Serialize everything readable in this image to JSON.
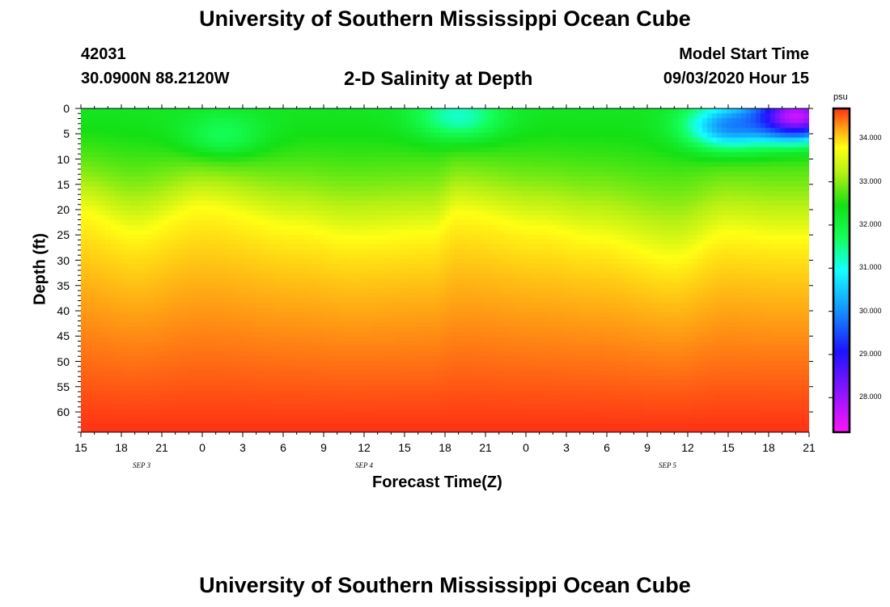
{
  "header": {
    "title": "University of Southern Mississippi Ocean Cube",
    "station_id": "42031",
    "location": "30.0900N 88.2120W",
    "plot_title": "2-D Salinity at Depth",
    "model_label": "Model Start Time",
    "model_time": "09/03/2020 Hour 15"
  },
  "footer": {
    "title": "University of Southern Mississippi Ocean Cube"
  },
  "chart_data": {
    "type": "heatmap",
    "title": "2-D Salinity at Depth",
    "xlabel": "Forecast Time(Z)",
    "ylabel": "Depth (ft)",
    "x_ticks": [
      "15",
      "18",
      "21",
      "0",
      "3",
      "6",
      "9",
      "12",
      "15",
      "18",
      "21",
      "0",
      "3",
      "6",
      "9",
      "12",
      "15",
      "18",
      "21"
    ],
    "x_hours": [
      0,
      54
    ],
    "date_labels": [
      {
        "label": "SEP 3",
        "hour": 4.5
      },
      {
        "label": "SEP 4",
        "hour": 21
      },
      {
        "label": "SEP 5",
        "hour": 43.5
      }
    ],
    "y_ticks": [
      0,
      5,
      10,
      15,
      20,
      25,
      30,
      35,
      40,
      45,
      50,
      55,
      60
    ],
    "ylim": [
      0,
      64
    ],
    "colorbar": {
      "unit": "psu",
      "range": [
        27.2,
        34.7
      ],
      "ticks": [
        "34.000",
        "33.000",
        "32.000",
        "31.000",
        "30.000",
        "29.000",
        "28.000"
      ],
      "tick_values": [
        34,
        33,
        32,
        31,
        30,
        29,
        28
      ]
    },
    "halocline_depth_ft": [
      {
        "hour": 0,
        "depth": 20
      },
      {
        "hour": 4,
        "depth": 24
      },
      {
        "hour": 9,
        "depth": 19
      },
      {
        "hour": 16,
        "depth": 23
      },
      {
        "hour": 20,
        "depth": 25
      },
      {
        "hour": 26,
        "depth": 24
      },
      {
        "hour": 28,
        "depth": 20
      },
      {
        "hour": 34,
        "depth": 23
      },
      {
        "hour": 38,
        "depth": 25
      },
      {
        "hour": 44,
        "depth": 29
      },
      {
        "hour": 48,
        "depth": 24
      },
      {
        "hour": 52,
        "depth": 25
      },
      {
        "hour": 54,
        "depth": 25
      }
    ],
    "fresh_patches": [
      {
        "hour": 28,
        "depth": 1.5,
        "min_psu": 31.0
      },
      {
        "hour": 48,
        "depth": 3.5,
        "min_psu": 30.1
      },
      {
        "hour": 53,
        "depth": 1.5,
        "min_psu": 27.6
      },
      {
        "hour": 10.5,
        "depth": 5.0,
        "min_psu": 31.45
      }
    ],
    "surface_psu": 31.9,
    "bottom_psu": 34.7
  }
}
